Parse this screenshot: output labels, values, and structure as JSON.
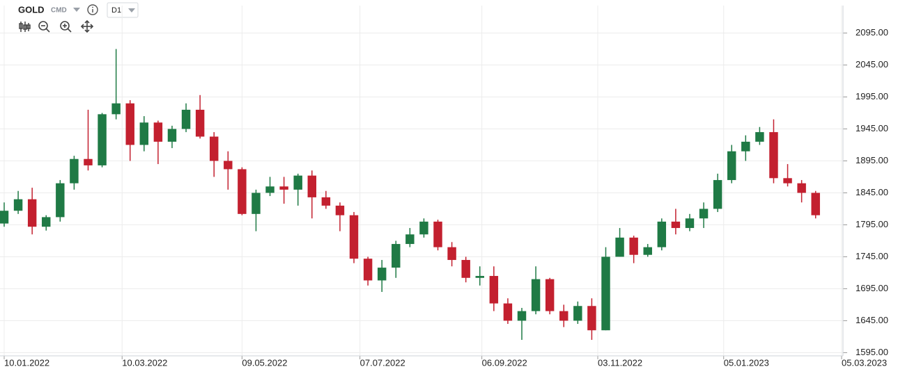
{
  "toolbar": {
    "symbol": "GOLD",
    "market": "CMD",
    "interval": "D1"
  },
  "chart_data": {
    "type": "candlestick",
    "up_color": "#1f7a45",
    "down_color": "#c3202f",
    "grid": true,
    "x": [
      "10.01.2022",
      "17.01.2022",
      "24.01.2022",
      "31.01.2022",
      "07.02.2022",
      "14.02.2022",
      "21.02.2022",
      "28.02.2022",
      "07.03.2022",
      "14.03.2022",
      "21.03.2022",
      "28.03.2022",
      "04.04.2022",
      "11.04.2022",
      "18.04.2022",
      "25.04.2022",
      "02.05.2022",
      "09.05.2022",
      "16.05.2022",
      "23.05.2022",
      "30.05.2022",
      "06.06.2022",
      "13.06.2022",
      "20.06.2022",
      "27.06.2022",
      "04.07.2022",
      "11.07.2022",
      "18.07.2022",
      "25.07.2022",
      "01.08.2022",
      "08.08.2022",
      "15.08.2022",
      "22.08.2022",
      "29.08.2022",
      "05.09.2022",
      "12.09.2022",
      "19.09.2022",
      "26.09.2022",
      "03.10.2022",
      "10.10.2022",
      "17.10.2022",
      "24.10.2022",
      "31.10.2022",
      "07.11.2022",
      "14.11.2022",
      "21.11.2022",
      "28.11.2022",
      "05.12.2022",
      "12.12.2022",
      "19.12.2022",
      "26.12.2022",
      "02.01.2023",
      "09.01.2023",
      "16.01.2023",
      "23.01.2023",
      "30.01.2023",
      "06.02.2023",
      "13.02.2023",
      "20.02.2023"
    ],
    "open": [
      1797,
      1817,
      1835,
      1792,
      1807,
      1860,
      1898,
      1888,
      1968,
      1985,
      1920,
      1955,
      1925,
      1945,
      1975,
      1933,
      1895,
      1882,
      1812,
      1845,
      1855,
      1850,
      1872,
      1838,
      1825,
      1810,
      1742,
      1708,
      1728,
      1765,
      1780,
      1800,
      1760,
      1740,
      1712,
      1715,
      1672,
      1645,
      1660,
      1710,
      1660,
      1645,
      1668,
      1630,
      1745,
      1775,
      1748,
      1760,
      1800,
      1790,
      1805,
      1820,
      1865,
      1910,
      1925,
      1940,
      1868,
      1860,
      1845
    ],
    "high": [
      1830,
      1848,
      1853,
      1810,
      1865,
      1903,
      1975,
      1970,
      2070,
      1990,
      1965,
      1958,
      1950,
      1985,
      1998,
      1940,
      1910,
      1885,
      1850,
      1870,
      1870,
      1875,
      1880,
      1848,
      1830,
      1815,
      1745,
      1740,
      1770,
      1790,
      1805,
      1803,
      1768,
      1745,
      1730,
      1730,
      1680,
      1665,
      1730,
      1712,
      1670,
      1675,
      1680,
      1760,
      1790,
      1778,
      1765,
      1805,
      1820,
      1812,
      1830,
      1875,
      1920,
      1935,
      1948,
      1960,
      1890,
      1865,
      1848
    ],
    "low": [
      1792,
      1812,
      1780,
      1786,
      1800,
      1850,
      1880,
      1885,
      1960,
      1895,
      1910,
      1890,
      1915,
      1940,
      1930,
      1870,
      1850,
      1810,
      1785,
      1840,
      1828,
      1825,
      1805,
      1820,
      1785,
      1735,
      1700,
      1690,
      1712,
      1760,
      1775,
      1755,
      1730,
      1705,
      1700,
      1660,
      1640,
      1615,
      1655,
      1655,
      1635,
      1640,
      1615,
      1630,
      1745,
      1735,
      1745,
      1755,
      1780,
      1785,
      1790,
      1815,
      1860,
      1895,
      1920,
      1860,
      1855,
      1830,
      1805
    ],
    "close": [
      1817,
      1835,
      1792,
      1807,
      1860,
      1898,
      1888,
      1968,
      1985,
      1920,
      1955,
      1925,
      1945,
      1975,
      1933,
      1895,
      1882,
      1812,
      1845,
      1855,
      1850,
      1872,
      1838,
      1825,
      1810,
      1742,
      1708,
      1728,
      1765,
      1780,
      1800,
      1760,
      1740,
      1712,
      1715,
      1672,
      1645,
      1660,
      1710,
      1660,
      1645,
      1668,
      1630,
      1745,
      1775,
      1748,
      1760,
      1800,
      1790,
      1805,
      1820,
      1865,
      1910,
      1925,
      1940,
      1868,
      1860,
      1845,
      1810
    ],
    "xticks": [
      "10.01.2022",
      "10.03.2022",
      "09.05.2022",
      "07.07.2022",
      "06.09.2022",
      "03.11.2022",
      "05.01.2023",
      "05.03.2023"
    ],
    "ylim": [
      1590,
      2138
    ],
    "yticks": [
      {
        "value": 1595,
        "label": "1595.00"
      },
      {
        "value": 1645,
        "label": "1645.00"
      },
      {
        "value": 1695,
        "label": "1695.00"
      },
      {
        "value": 1745,
        "label": "1745.00"
      },
      {
        "value": 1795,
        "label": "1795.00"
      },
      {
        "value": 1845,
        "label": "1845.00"
      },
      {
        "value": 1895,
        "label": "1895.00"
      },
      {
        "value": 1945,
        "label": "1945.00"
      },
      {
        "value": 1995,
        "label": "1995.00"
      },
      {
        "value": 2045,
        "label": "2045.00"
      },
      {
        "value": 2095,
        "label": "2095.00"
      }
    ]
  }
}
